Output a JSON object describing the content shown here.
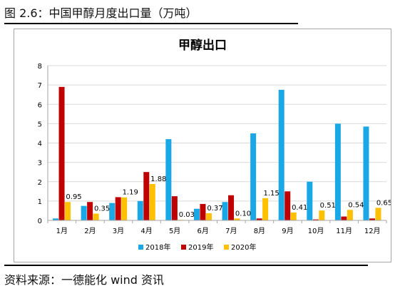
{
  "figure": {
    "caption": "图 2.6：中国甲醇月度出口量（万吨）",
    "source": "资料来源：一德能化  wind 资讯"
  },
  "chart_data": {
    "type": "bar",
    "title": "甲醇出口",
    "categories": [
      "1月",
      "2月",
      "3月",
      "4月",
      "5月",
      "6月",
      "7月",
      "8月",
      "9月",
      "10月",
      "11月",
      "12月"
    ],
    "series": [
      {
        "name": "2018年",
        "color": "#1aa7e6",
        "values": [
          0.1,
          0.75,
          0.9,
          1.0,
          4.2,
          0.6,
          0.95,
          4.5,
          6.75,
          2.0,
          5.0,
          4.85
        ]
      },
      {
        "name": "2019年",
        "color": "#c00000",
        "values": [
          6.9,
          0.95,
          1.2,
          2.5,
          1.25,
          0.85,
          1.3,
          0.1,
          1.5,
          0.05,
          0.2,
          0.1
        ]
      },
      {
        "name": "2020年",
        "color": "#ffc000",
        "values": [
          0.95,
          0.35,
          1.19,
          1.88,
          0.03,
          0.37,
          0.1,
          1.15,
          0.41,
          0.51,
          0.54,
          0.65
        ]
      }
    ],
    "data_labels": [
      "0.95",
      "0.35",
      "1.19",
      "1.88",
      "0.03",
      "0.37",
      "0.10",
      "1.15",
      "0.41",
      "0.51",
      "0.54",
      "0.65"
    ],
    "y_ticks": [
      "0",
      "1",
      "2",
      "3",
      "4",
      "5",
      "6",
      "7",
      "8"
    ],
    "ylim": [
      0,
      8
    ],
    "grid": true,
    "legend_position": "bottom"
  }
}
